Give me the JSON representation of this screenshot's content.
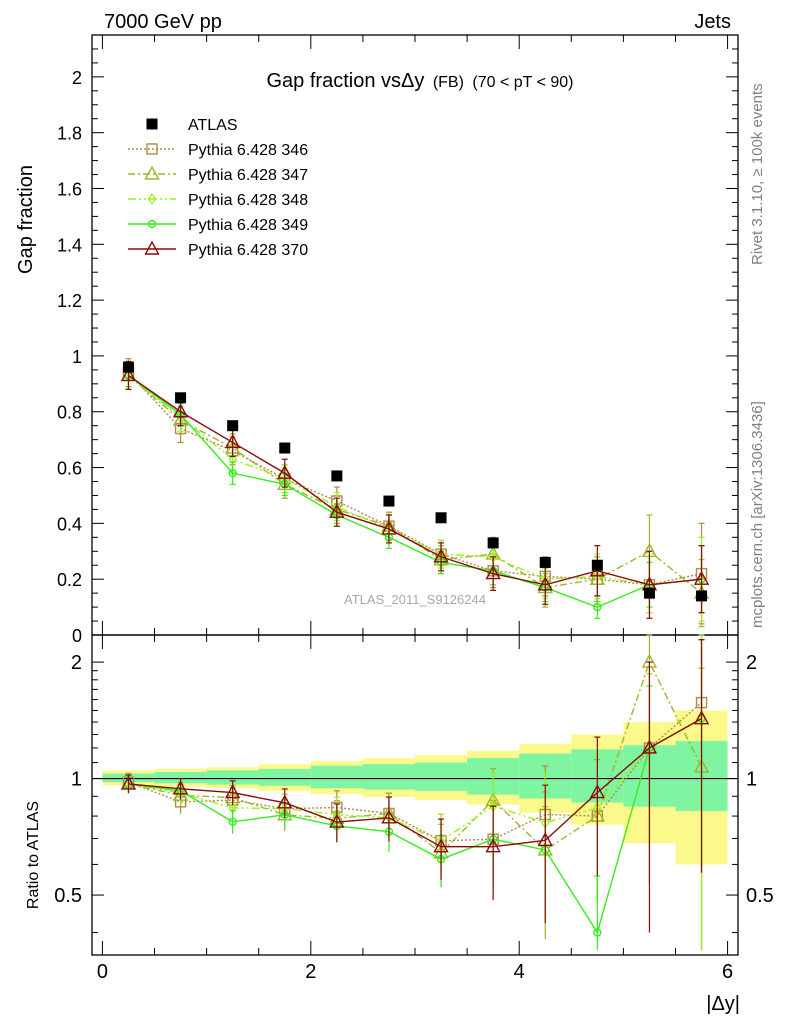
{
  "header": {
    "left": "7000 GeV pp",
    "right": "Jets"
  },
  "title": {
    "main": "Gap fraction vsΔy",
    "fb": "(FB)",
    "range": "(70 < pT <  90)"
  },
  "side_labels": {
    "rivet": "Rivet 3.1.10, ≥ 100k events",
    "mcplots": "mcplots.cern.ch [arXiv:1306.3436]"
  },
  "watermark": "ATLAS_2011_S9126244",
  "axes": {
    "top_ylabel": "Gap fraction",
    "bottom_ylabel": "Ratio to ATLAS",
    "xlabel": "|Δy|"
  },
  "ticks": {
    "top_y": [
      "0",
      "0.2",
      "0.4",
      "0.6",
      "0.8",
      "1",
      "1.2",
      "1.4",
      "1.6",
      "1.8",
      "2"
    ],
    "bottom_y_left": [
      "0.5",
      "1",
      "2"
    ],
    "bottom_y_right": [
      "0.5",
      "1",
      "2"
    ],
    "x": [
      "0",
      "2",
      "4",
      "6"
    ]
  },
  "legend": [
    {
      "key": "atlas",
      "label": "ATLAS"
    },
    {
      "key": "p346",
      "label": "Pythia 6.428 346"
    },
    {
      "key": "p347",
      "label": "Pythia 6.428 347"
    },
    {
      "key": "p348",
      "label": "Pythia 6.428 348"
    },
    {
      "key": "p349",
      "label": "Pythia 6.428 349"
    },
    {
      "key": "p370",
      "label": "Pythia 6.428 370"
    }
  ],
  "colors": {
    "atlas": "#000000",
    "p346": "#b5874a",
    "p347": "#9db52a",
    "p348": "#9cf21e",
    "p349": "#33ee1a",
    "p370": "#8b0a0a",
    "band_inner": "#7ff5a2",
    "band_outer": "#fcf98c"
  },
  "chart_data": {
    "type": "scatter",
    "x": [
      0.25,
      0.75,
      1.25,
      1.75,
      2.25,
      2.75,
      3.25,
      3.75,
      4.25,
      4.75,
      5.25,
      5.75
    ],
    "xlim": [
      -0.1,
      6.1
    ],
    "top_ylim": [
      0,
      2.15
    ],
    "ratio_ylim": [
      0.35,
      2.35
    ],
    "ratio_scale": "log",
    "series": [
      {
        "name": "ATLAS",
        "values": [
          0.96,
          0.85,
          0.75,
          0.67,
          0.57,
          0.48,
          0.42,
          0.33,
          0.26,
          0.25,
          0.15,
          0.14
        ]
      },
      {
        "name": "Pythia 6.428 346",
        "values": [
          0.94,
          0.74,
          0.66,
          0.56,
          0.48,
          0.39,
          0.29,
          0.23,
          0.21,
          0.2,
          0.18,
          0.22
        ]
      },
      {
        "name": "Pythia 6.428 347",
        "values": [
          0.93,
          0.77,
          0.67,
          0.54,
          0.45,
          0.39,
          0.27,
          0.29,
          0.17,
          0.2,
          0.3,
          0.15
        ]
      },
      {
        "name": "Pythia 6.428 348",
        "values": [
          0.93,
          0.78,
          0.63,
          0.56,
          0.46,
          0.38,
          0.29,
          0.28,
          0.2,
          0.21,
          0.18,
          0.2
        ]
      },
      {
        "name": "Pythia 6.428 349",
        "values": [
          0.93,
          0.79,
          0.58,
          0.54,
          0.43,
          0.35,
          0.26,
          0.23,
          0.17,
          0.1,
          0.18,
          0.2
        ]
      },
      {
        "name": "Pythia 6.428 370",
        "values": [
          0.93,
          0.8,
          0.69,
          0.58,
          0.44,
          0.38,
          0.28,
          0.22,
          0.18,
          0.23,
          0.18,
          0.2
        ]
      }
    ],
    "errors": {
      "p346": [
        0.05,
        0.05,
        0.05,
        0.05,
        0.05,
        0.05,
        0.05,
        0.06,
        0.07,
        0.08,
        0.1,
        0.18
      ],
      "p347": [
        0.05,
        0.05,
        0.05,
        0.05,
        0.05,
        0.05,
        0.05,
        0.06,
        0.07,
        0.08,
        0.13,
        0.12
      ],
      "p348": [
        0.05,
        0.05,
        0.05,
        0.05,
        0.05,
        0.05,
        0.05,
        0.06,
        0.07,
        0.08,
        0.1,
        0.15
      ],
      "p349": [
        0.04,
        0.04,
        0.04,
        0.04,
        0.04,
        0.04,
        0.04,
        0.05,
        0.05,
        0.04,
        0.08,
        0.12
      ],
      "p370": [
        0.05,
        0.05,
        0.05,
        0.05,
        0.05,
        0.05,
        0.05,
        0.06,
        0.07,
        0.09,
        0.12,
        0.12
      ]
    },
    "atlas_band": {
      "inner": [
        0.03,
        0.04,
        0.05,
        0.06,
        0.08,
        0.09,
        0.1,
        0.13,
        0.16,
        0.19,
        0.22,
        0.25
      ],
      "outer": [
        0.05,
        0.06,
        0.07,
        0.09,
        0.11,
        0.13,
        0.15,
        0.18,
        0.23,
        0.3,
        0.4,
        0.5
      ]
    }
  }
}
